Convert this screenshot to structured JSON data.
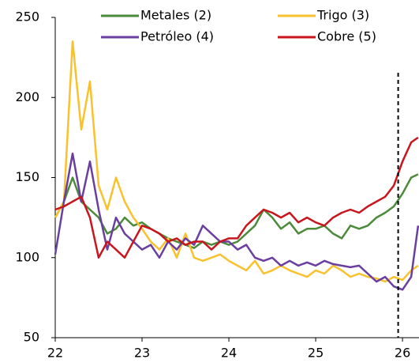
{
  "chart_data": {
    "type": "line",
    "x": [
      22,
      22.1,
      22.2,
      22.3,
      22.4,
      22.5,
      22.6,
      22.7,
      22.8,
      22.9,
      23,
      23.1,
      23.2,
      23.3,
      23.4,
      23.5,
      23.6,
      23.7,
      23.8,
      23.9,
      24,
      24.1,
      24.2,
      24.3,
      24.4,
      24.5,
      24.6,
      24.7,
      24.8,
      24.9,
      25,
      25.1,
      25.2,
      25.3,
      25.4,
      25.5,
      25.6,
      25.7,
      25.8,
      25.9,
      26,
      26.1,
      26.18
    ],
    "series": [
      {
        "name": "Metales (2)",
        "color": "#4c8b3a",
        "values": [
          125,
          135,
          150,
          135,
          130,
          125,
          115,
          118,
          125,
          120,
          122,
          118,
          115,
          112,
          110,
          108,
          106,
          110,
          108,
          110,
          108,
          110,
          115,
          120,
          130,
          125,
          118,
          122,
          115,
          118,
          118,
          120,
          115,
          112,
          120,
          118,
          120,
          125,
          128,
          132,
          140,
          150,
          152
        ]
      },
      {
        "name": "Trigo (3)",
        "color": "#f9c12e",
        "values": [
          125,
          135,
          235,
          180,
          210,
          145,
          130,
          150,
          135,
          125,
          118,
          110,
          105,
          112,
          100,
          115,
          100,
          98,
          100,
          102,
          98,
          95,
          92,
          98,
          90,
          92,
          95,
          92,
          90,
          88,
          92,
          90,
          95,
          92,
          88,
          90,
          88,
          87,
          85,
          88,
          86,
          92,
          95
        ]
      },
      {
        "name": "Petróleo (4)",
        "color": "#6a3fa0",
        "values": [
          102,
          135,
          165,
          135,
          160,
          130,
          105,
          125,
          115,
          110,
          105,
          108,
          100,
          110,
          105,
          112,
          108,
          120,
          115,
          110,
          110,
          105,
          108,
          100,
          98,
          100,
          95,
          98,
          95,
          97,
          95,
          98,
          96,
          95,
          94,
          95,
          90,
          85,
          88,
          82,
          80,
          88,
          120
        ]
      },
      {
        "name": "Cobre (5)",
        "color": "#c8161e",
        "values": [
          130,
          132,
          135,
          138,
          125,
          100,
          110,
          105,
          100,
          110,
          120,
          118,
          115,
          110,
          112,
          108,
          110,
          110,
          105,
          110,
          112,
          112,
          120,
          125,
          130,
          128,
          125,
          128,
          122,
          125,
          122,
          120,
          125,
          128,
          130,
          128,
          132,
          135,
          138,
          145,
          160,
          172,
          175
        ]
      }
    ],
    "xlim": [
      22,
      26.19
    ],
    "xticks": [
      22,
      23,
      24,
      25,
      26
    ],
    "ylim": [
      50,
      250
    ],
    "yticks": [
      50,
      100,
      150,
      200,
      250
    ],
    "vline": 25.95
  }
}
